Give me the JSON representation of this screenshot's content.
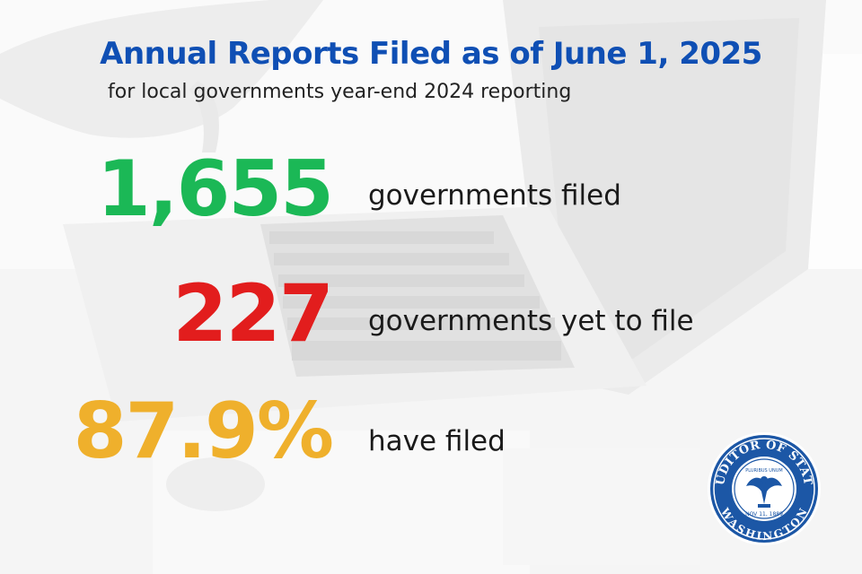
{
  "title": "Annual Reports Filed as of June 1, 2025",
  "subtitle": "for local governments year-end 2024 reporting",
  "colors": {
    "title": "#0f4fb4",
    "filed": "#1bb856",
    "yet_to_file": "#e21d1d",
    "percent": "#efb02c",
    "seal_blue": "#1c57a6"
  },
  "stats": [
    {
      "value": "1,655",
      "label": "governments filed"
    },
    {
      "value": "227",
      "label": "governments yet to file"
    },
    {
      "value": "87.9%",
      "label": "have filed"
    }
  ],
  "seal": {
    "top_text": "AUDITOR OF STATE",
    "bottom_text": "WASHINGTON",
    "date": "NOV 11, 1889",
    "motto": "PLURIBUS UNUM",
    "icon": "state-auditor-seal-icon"
  }
}
